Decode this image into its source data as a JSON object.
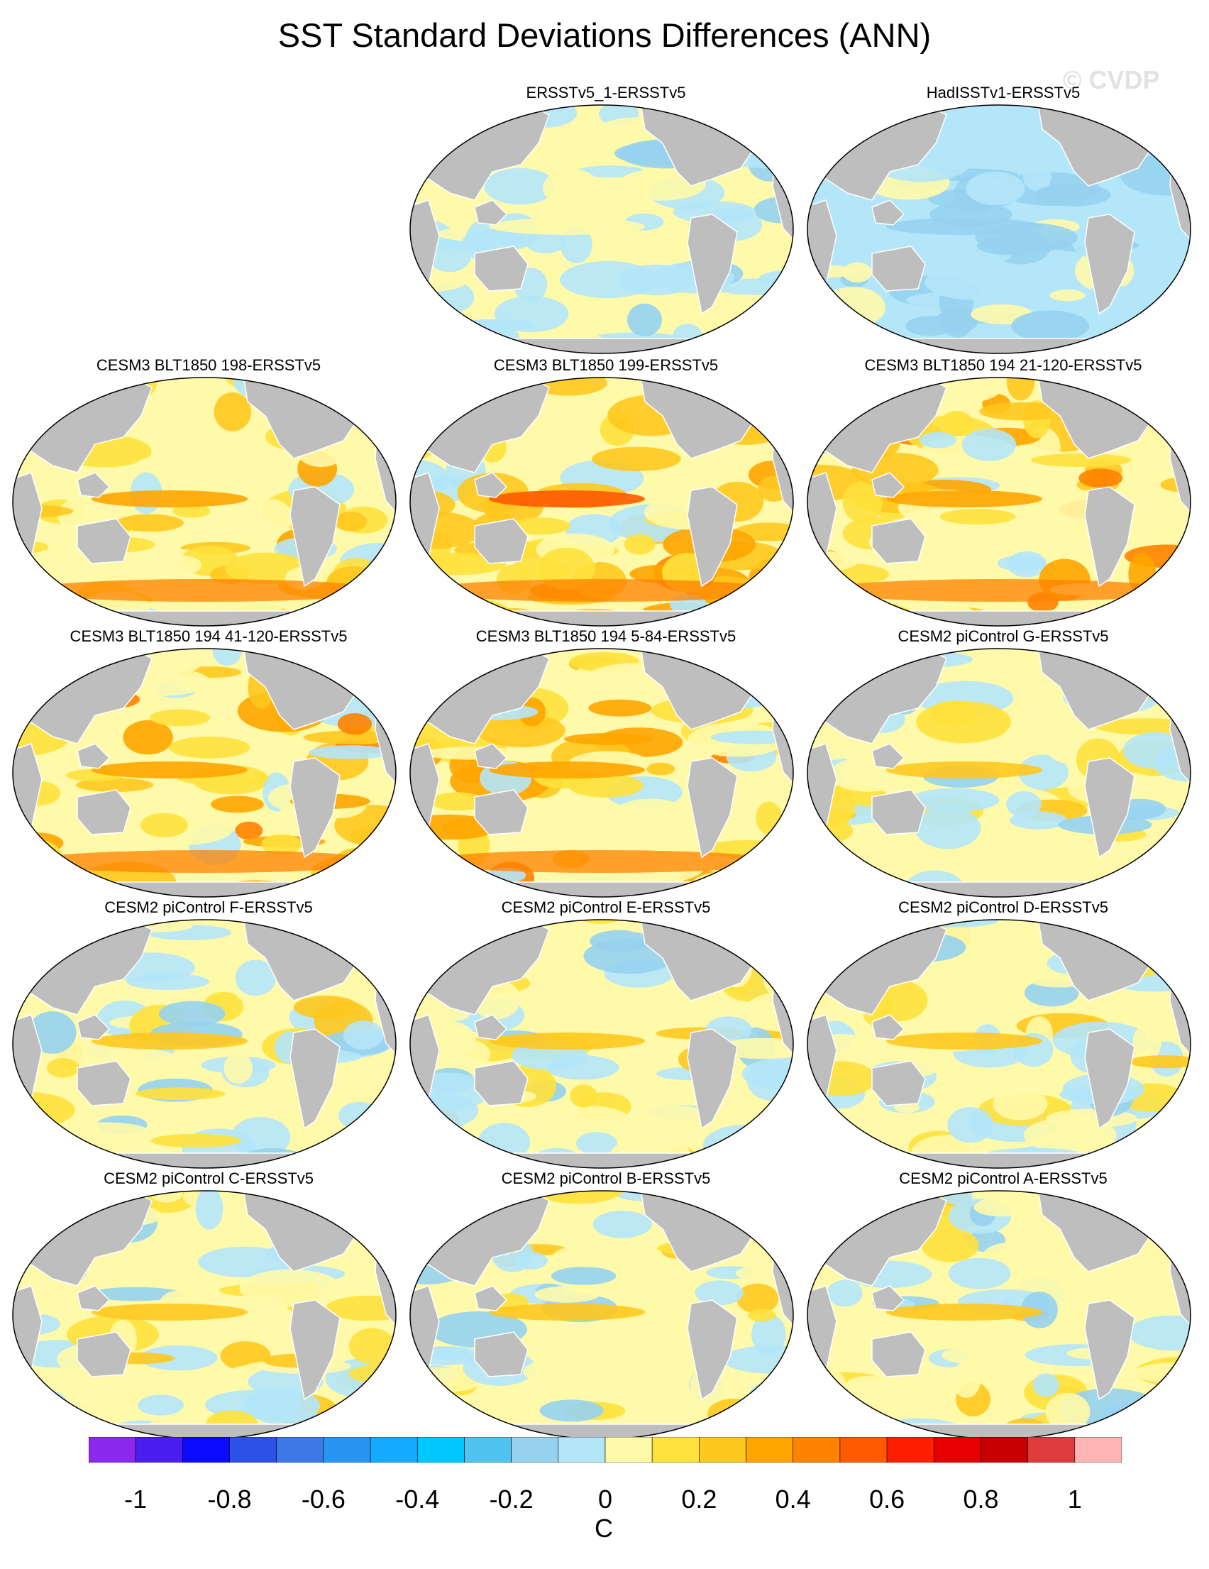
{
  "title": "SST Standard Deviations Differences (ANN)",
  "watermark": "© CVDP",
  "panels": [
    {
      "title": "ERSSTv5_1-ERSSTv5",
      "style": "obs1"
    },
    {
      "title": "HadISSTv1-ERSSTv5",
      "style": "obs2"
    },
    {
      "title": "CESM3 BLT1850 198-ERSSTv5",
      "style": "warm1"
    },
    {
      "title": "CESM3 BLT1850 199-ERSSTv5",
      "style": "warm2"
    },
    {
      "title": "CESM3 BLT1850 194 21-120-ERSSTv5",
      "style": "warm1"
    },
    {
      "title": "CESM3 BLT1850 194 41-120-ERSSTv5",
      "style": "warm1"
    },
    {
      "title": "CESM3 BLT1850 194 5-84-ERSSTv5",
      "style": "warm1"
    },
    {
      "title": "CESM2 piControl G-ERSSTv5",
      "style": "mixed"
    },
    {
      "title": "CESM2 piControl F-ERSSTv5",
      "style": "mixed"
    },
    {
      "title": "CESM2 piControl E-ERSSTv5",
      "style": "mixed"
    },
    {
      "title": "CESM2 piControl D-ERSSTv5",
      "style": "mixed"
    },
    {
      "title": "CESM2 piControl C-ERSSTv5",
      "style": "mixed"
    },
    {
      "title": "CESM2 piControl B-ERSSTv5",
      "style": "mixed"
    },
    {
      "title": "CESM2 piControl A-ERSSTv5",
      "style": "mixed"
    }
  ],
  "colorbar": {
    "colors": [
      "#8c28f0",
      "#4b1ef0",
      "#0a0aff",
      "#2d50e6",
      "#3c78e6",
      "#2896f0",
      "#14aaff",
      "#00c8ff",
      "#50c3f0",
      "#96d2f0",
      "#b4e6fa",
      "#fffaaa",
      "#ffe13c",
      "#ffc81e",
      "#ffa500",
      "#ff8200",
      "#ff5a00",
      "#ff1e00",
      "#e60000",
      "#c80000",
      "#dc3c3c",
      "#ffb4b4"
    ],
    "labels": [
      "-1",
      "-0.8",
      "-0.6",
      "-0.4",
      "-0.2",
      "0",
      "0.2",
      "0.4",
      "0.6",
      "0.8",
      "1"
    ],
    "unit": "C"
  },
  "land_color": "#bebebe"
}
